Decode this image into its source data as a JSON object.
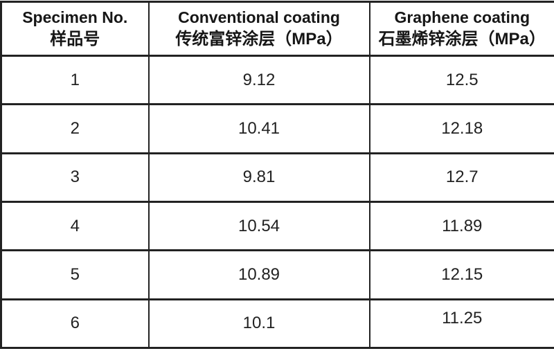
{
  "table": {
    "columns": [
      {
        "en": "Specimen No.",
        "zh": "样品号"
      },
      {
        "en": "Conventional coating",
        "zh": "传统富锌涂层（MPa）"
      },
      {
        "en": "Graphene coating",
        "zh": "石墨烯锌涂层（MPa）"
      }
    ],
    "rows": [
      {
        "specimen": "1",
        "conventional": "9.12",
        "graphene": "12.5"
      },
      {
        "specimen": "2",
        "conventional": "10.41",
        "graphene": "12.18"
      },
      {
        "specimen": "3",
        "conventional": "9.81",
        "graphene": "12.7"
      },
      {
        "specimen": "4",
        "conventional": "10.54",
        "graphene": "11.89"
      },
      {
        "specimen": "5",
        "conventional": "10.89",
        "graphene": "12.15"
      },
      {
        "specimen": "6",
        "conventional": "10.1",
        "graphene": "11.25"
      }
    ]
  },
  "chart_data": {
    "type": "table",
    "title": "",
    "columns": [
      "Specimen No. 样品号",
      "Conventional coating 传统富锌涂层（MPa）",
      "Graphene coating 石墨烯锌涂层（MPa）"
    ],
    "categories": [
      1,
      2,
      3,
      4,
      5,
      6
    ],
    "series": [
      {
        "name": "Conventional coating 传统富锌涂层 (MPa)",
        "values": [
          9.12,
          10.41,
          9.81,
          10.54,
          10.89,
          10.1
        ]
      },
      {
        "name": "Graphene coating 石墨烯锌涂层 (MPa)",
        "values": [
          12.5,
          12.18,
          12.7,
          11.89,
          12.15,
          11.25
        ]
      }
    ]
  },
  "colors": {
    "background": "#ffffff",
    "border": "#222222",
    "text": "#1c1c1c"
  }
}
